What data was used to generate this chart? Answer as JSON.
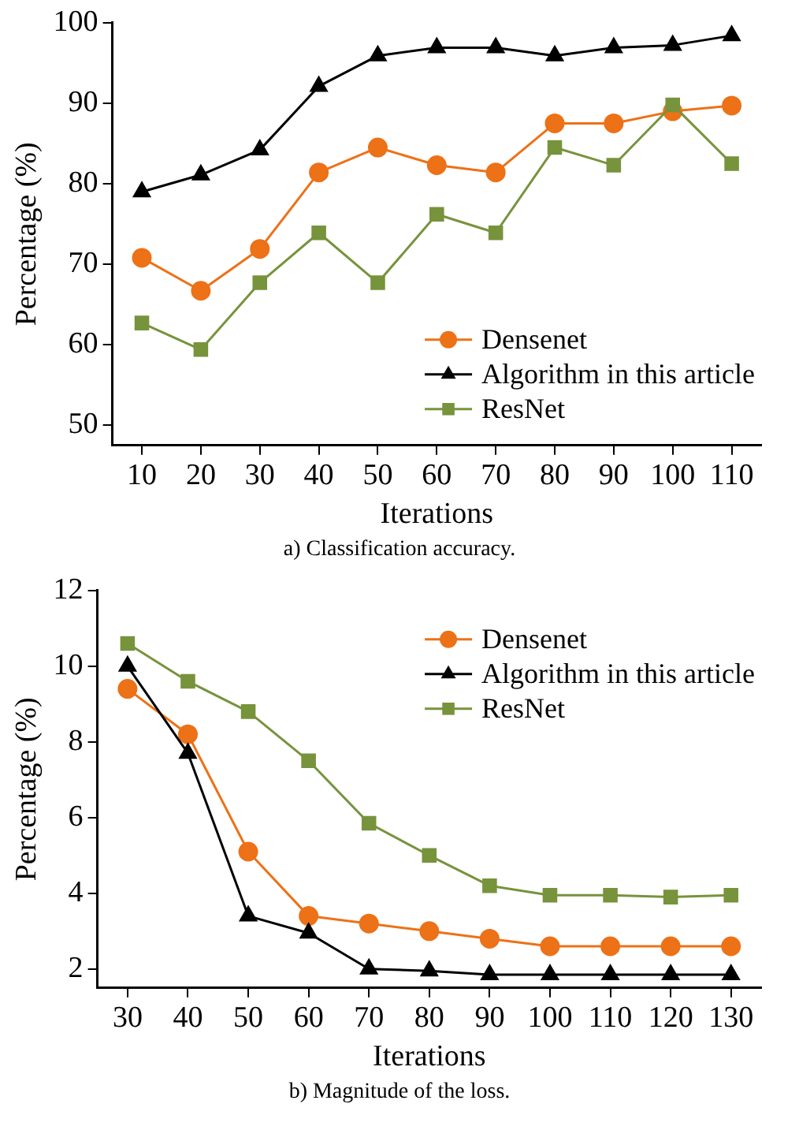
{
  "chart_data": [
    {
      "type": "line",
      "xlabel": "Iterations",
      "ylabel": "Percentage (%)",
      "annotations": [
        "a) Classification accuracy."
      ],
      "categories": [
        "10",
        "20",
        "30",
        "40",
        "50",
        "60",
        "70",
        "80",
        "90",
        "100",
        "110"
      ],
      "series": [
        {
          "name": "Densenet",
          "color": "#ed7117",
          "marker": "circle",
          "values": [
            70.8,
            66.7,
            71.9,
            81.4,
            84.5,
            82.3,
            81.4,
            87.5,
            87.5,
            89,
            89.7
          ]
        },
        {
          "name": "Algorithm in this article",
          "color": "#000000",
          "marker": "triangle",
          "values": [
            79,
            81.1,
            84.2,
            92.1,
            95.9,
            96.9,
            96.9,
            95.9,
            96.9,
            97.2,
            98.4
          ]
        },
        {
          "name": "ResNet",
          "color": "#77933c",
          "marker": "square",
          "values": [
            62.7,
            59.4,
            67.7,
            73.9,
            67.7,
            76.2,
            73.9,
            84.5,
            82.3,
            89.8,
            82.5
          ]
        }
      ],
      "ylim": [
        47.5,
        100
      ],
      "yticks": [
        50,
        60,
        70,
        80,
        90,
        100
      ],
      "grid": false,
      "legend": "bottom right",
      "line_style": "solid"
    },
    {
      "type": "line",
      "xlabel": "Iterations",
      "ylabel": "Percentage (%)",
      "annotations": [
        "b) Magnitude of the loss."
      ],
      "categories": [
        "30",
        "40",
        "50",
        "60",
        "70",
        "80",
        "90",
        "100",
        "110",
        "120",
        "130"
      ],
      "series": [
        {
          "name": "Densenet",
          "color": "#ed7117",
          "marker": "circle",
          "values": [
            9.4,
            8.2,
            5.1,
            3.4,
            3.2,
            3.0,
            2.8,
            2.6,
            2.6,
            2.6,
            2.6
          ]
        },
        {
          "name": "Algorithm in this article",
          "color": "#000000",
          "marker": "triangle",
          "values": [
            10,
            7.7,
            3.4,
            2.95,
            2,
            1.95,
            1.85,
            1.85,
            1.85,
            1.85,
            1.85
          ]
        },
        {
          "name": "ResNet",
          "color": "#77933c",
          "marker": "square",
          "values": [
            10.6,
            9.6,
            8.8,
            7.5,
            5.85,
            5,
            4.2,
            3.95,
            3.95,
            3.9,
            3.95
          ]
        }
      ],
      "ylim": [
        1.5,
        12
      ],
      "yticks": [
        2,
        4,
        6,
        8,
        10,
        12
      ],
      "grid": false,
      "legend": "top right",
      "line_style": "solid"
    }
  ]
}
